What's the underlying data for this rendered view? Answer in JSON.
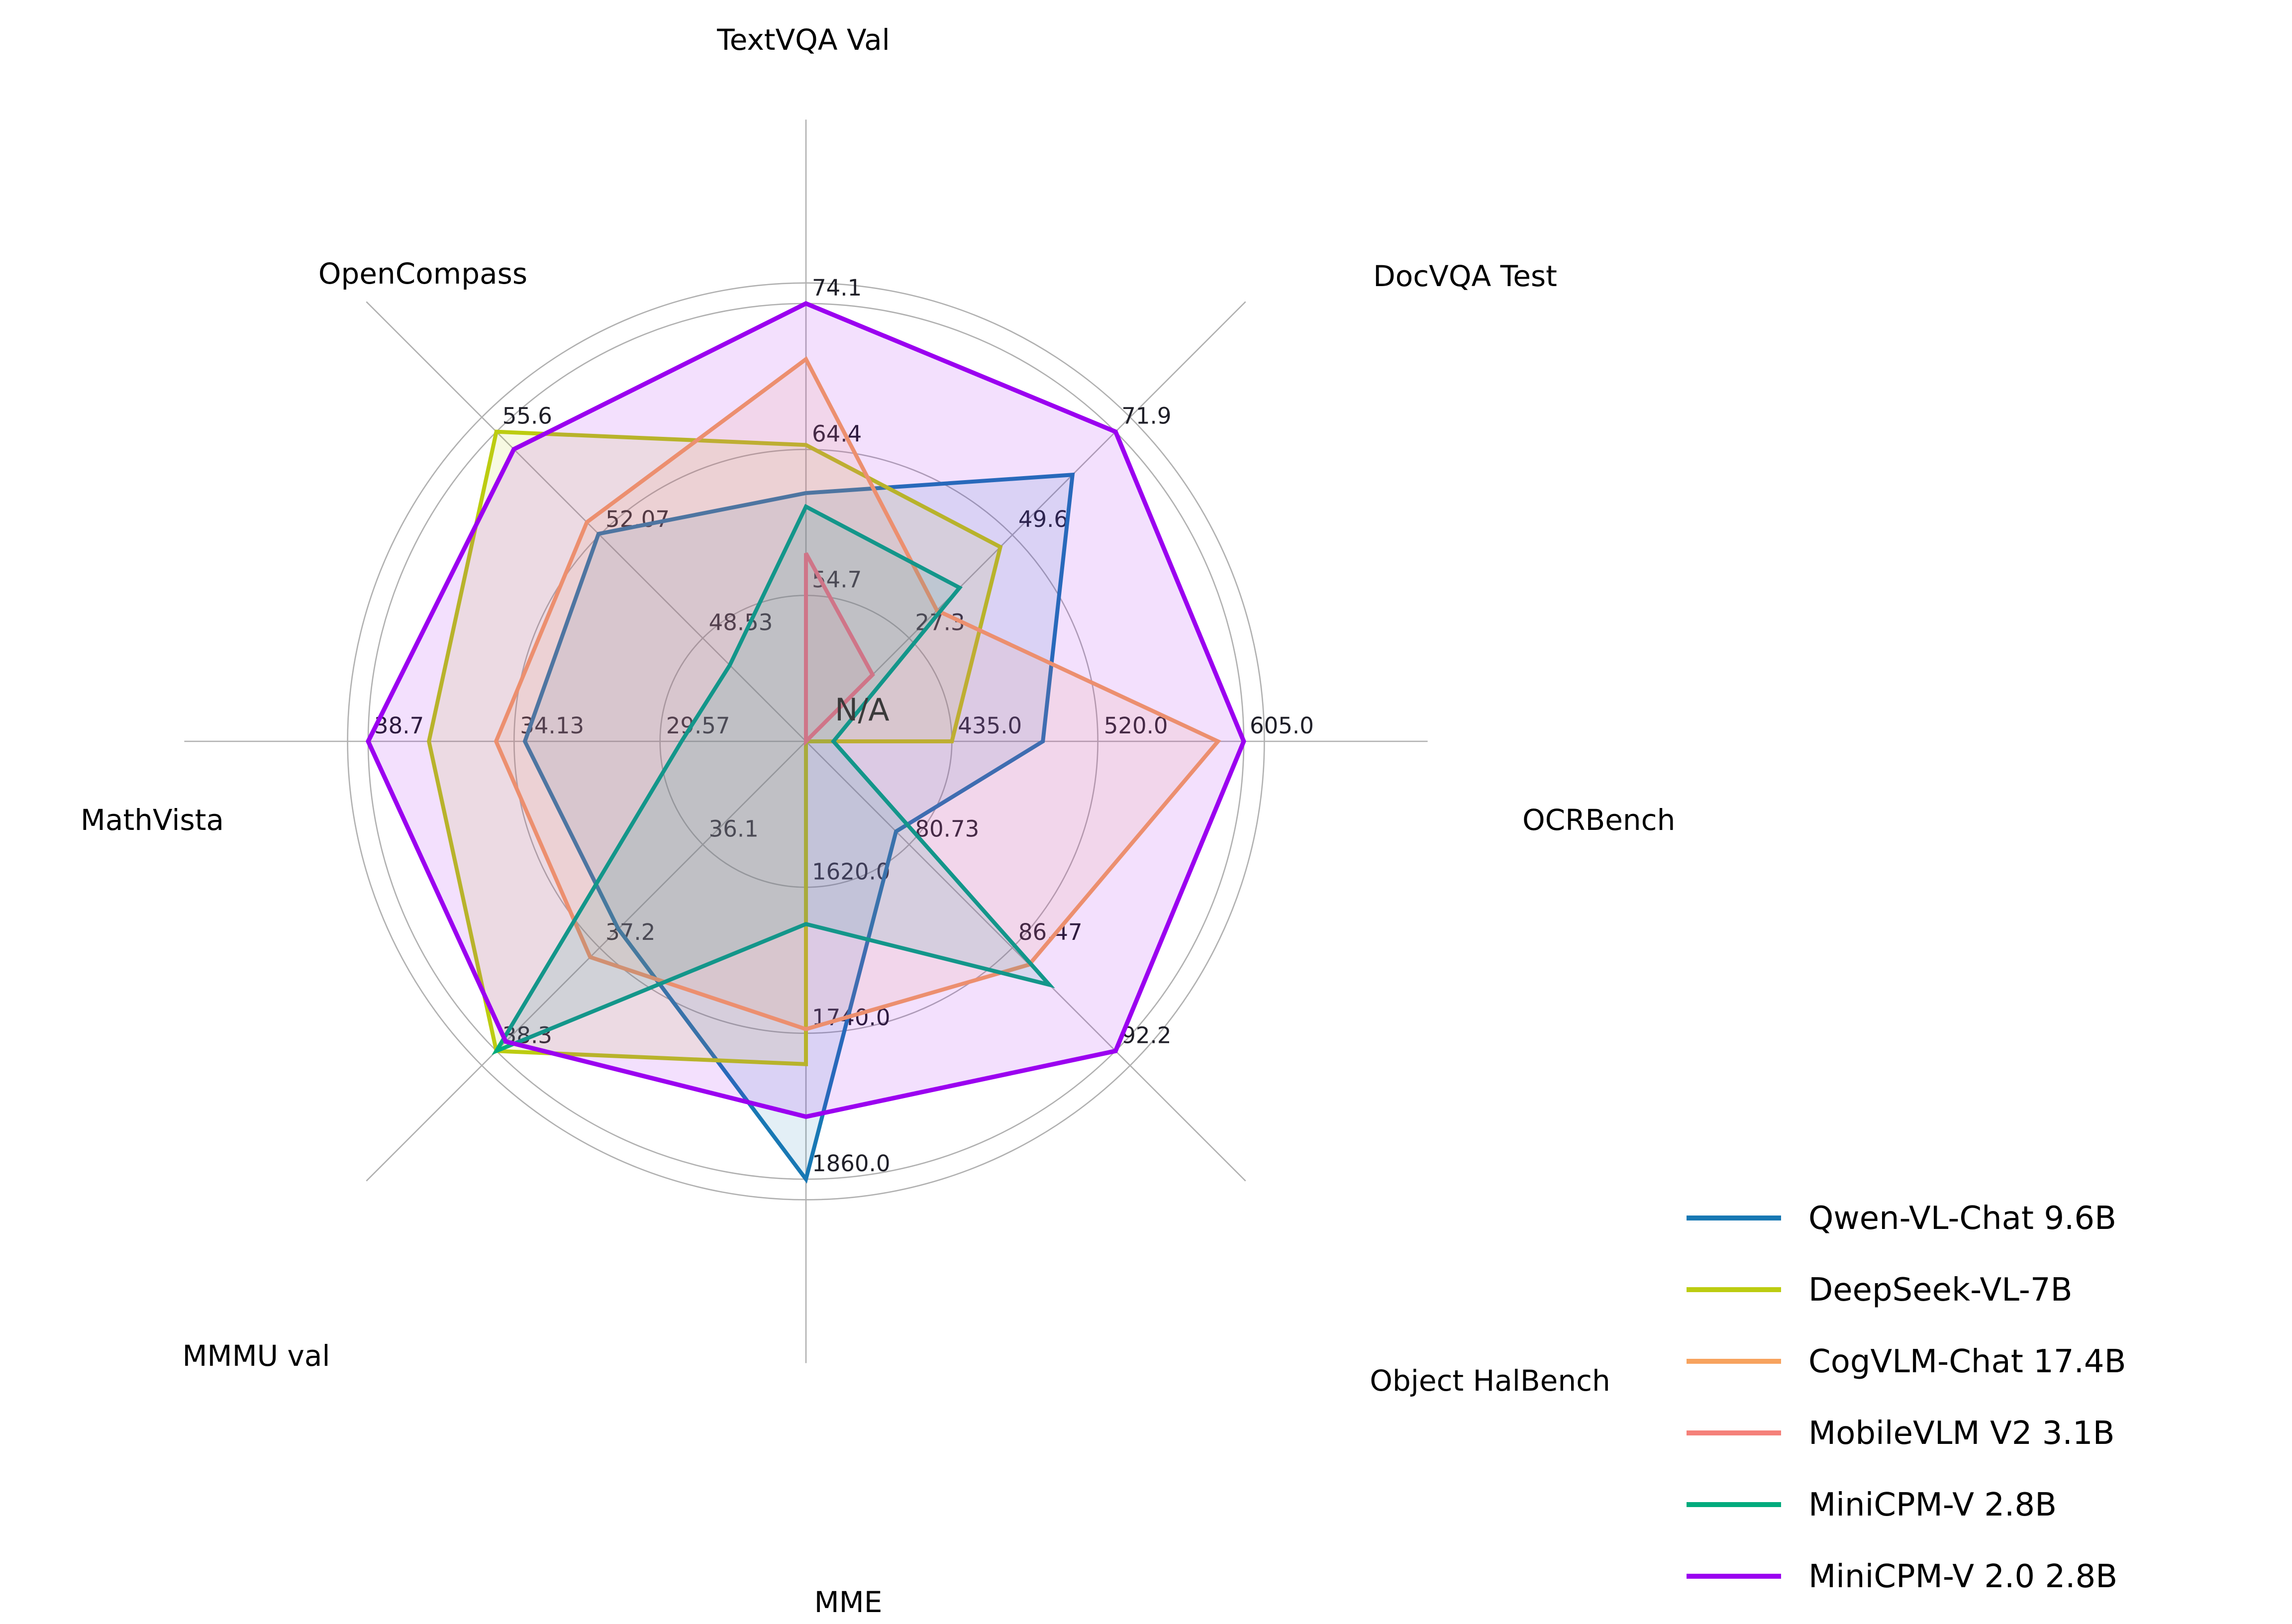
{
  "figure": {
    "center_label": "N/A"
  },
  "chart_data": {
    "type": "radar",
    "title": "",
    "grid": true,
    "legend_position": "lower right",
    "ring_fractions": [
      0.3333,
      0.6667,
      1.0
    ],
    "center_label": "N/A",
    "axes": [
      {
        "label": "TextVQA Val",
        "tick_labels": [
          "54.7",
          "64.4",
          "74.1"
        ]
      },
      {
        "label": "DocVQA Test",
        "tick_labels": [
          "27.3",
          "49.6",
          "71.9"
        ]
      },
      {
        "label": "OCRBench",
        "tick_labels": [
          "435.0",
          "520.0",
          "605.0"
        ]
      },
      {
        "label": "Object HalBench",
        "tick_labels": [
          "80.73",
          "86.47",
          "92.2"
        ]
      },
      {
        "label": "MME",
        "tick_labels": [
          "1620.0",
          "1740.0",
          "1860.0"
        ]
      },
      {
        "label": "MMMU val",
        "tick_labels": [
          "36.1",
          "37.2",
          "38.3"
        ]
      },
      {
        "label": "MathVista",
        "tick_labels": [
          "29.57",
          "34.13",
          "38.7"
        ]
      },
      {
        "label": "OpenCompass",
        "tick_labels": [
          "48.53",
          "52.07",
          "55.6"
        ]
      }
    ],
    "series": [
      {
        "name": "Qwen-VL-Chat 9.6B",
        "color": "#1878b4",
        "values": [
          61.5,
          62.6,
          488,
          80.0,
          1860.0,
          37.0,
          33.8,
          52.1
        ]
      },
      {
        "name": "DeepSeek-VL-7B",
        "color": "#bccc11",
        "values": [
          64.7,
          47.0,
          435,
          null,
          1765.4,
          38.3,
          36.8,
          55.6
        ]
      },
      {
        "name": "CogVLM-Chat 17.4B",
        "color": "#f7a35e",
        "values": [
          70.4,
          33.3,
          590,
          87.4,
          1736.6,
          37.3,
          34.7,
          52.5
        ]
      },
      {
        "name": "MobileVLM V2 3.1B",
        "color": "#f5817a",
        "values": [
          57.5,
          19.4,
          null,
          null,
          null,
          null,
          null,
          null
        ]
      },
      {
        "name": "MiniCPM-V 2.8B",
        "color": "#00ab7d",
        "values": [
          60.6,
          38.2,
          366,
          88.52,
          1650.2,
          38.3,
          28.9,
          47.6
        ]
      },
      {
        "name": "MiniCPM-V 2.0 2.8B",
        "color": "#9b00f0",
        "values": [
          74.1,
          71.9,
          605,
          92.2,
          1808.6,
          38.2,
          38.7,
          55.0
        ]
      }
    ]
  }
}
